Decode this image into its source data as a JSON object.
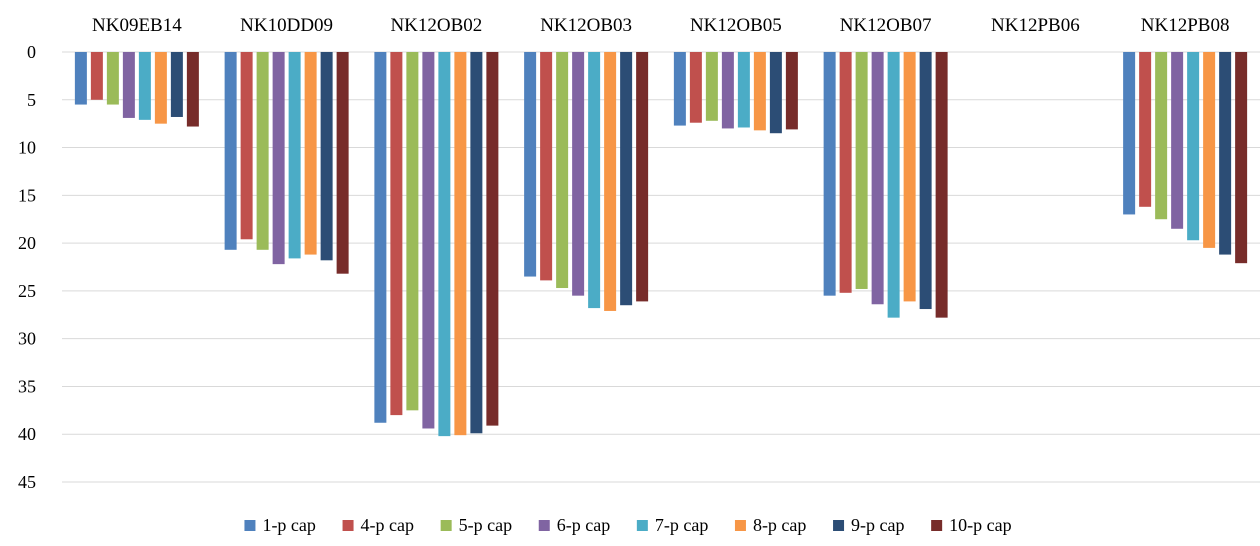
{
  "chart_data": {
    "type": "bar",
    "orientation": "vertical",
    "y_axis_inverted": true,
    "category_axis_position": "top",
    "categories": [
      "NK09EB14",
      "NK10DD09",
      "NK12OB02",
      "NK12OB03",
      "NK12OB05",
      "NK12OB07",
      "NK12PB06",
      "NK12PB08"
    ],
    "series": [
      {
        "name": "1-p cap",
        "color": "#4f81bd",
        "values": [
          5.5,
          20.7,
          38.8,
          23.5,
          7.7,
          25.5,
          null,
          17.0
        ]
      },
      {
        "name": "4-p cap",
        "color": "#c0504d",
        "values": [
          5.0,
          19.6,
          38.0,
          23.9,
          7.4,
          25.2,
          null,
          16.2
        ]
      },
      {
        "name": "5-p cap",
        "color": "#9bbb59",
        "values": [
          5.5,
          20.7,
          37.5,
          24.7,
          7.2,
          24.8,
          null,
          17.5
        ]
      },
      {
        "name": "6-p cap",
        "color": "#8064a2",
        "values": [
          6.9,
          22.2,
          39.4,
          25.5,
          8.0,
          26.4,
          null,
          18.5
        ]
      },
      {
        "name": "7-p cap",
        "color": "#4bacc6",
        "values": [
          7.1,
          21.6,
          40.2,
          26.8,
          7.9,
          27.8,
          null,
          19.7
        ]
      },
      {
        "name": "8-p cap",
        "color": "#f79646",
        "values": [
          7.5,
          21.2,
          40.1,
          27.1,
          8.2,
          26.1,
          null,
          20.5
        ]
      },
      {
        "name": "9-p cap",
        "color": "#2c4d75",
        "values": [
          6.8,
          21.8,
          39.9,
          26.5,
          8.5,
          26.9,
          null,
          21.2
        ]
      },
      {
        "name": "10-p cap",
        "color": "#772c2a",
        "values": [
          7.8,
          23.2,
          39.1,
          26.1,
          8.1,
          27.8,
          null,
          22.1
        ]
      }
    ],
    "ylim": [
      0,
      45
    ],
    "y_ticks": [
      "0",
      "5",
      "10",
      "15",
      "20",
      "25",
      "30",
      "35",
      "40",
      "45"
    ],
    "grid": true,
    "legend_position": "bottom",
    "title": "",
    "xlabel": "",
    "ylabel": ""
  }
}
